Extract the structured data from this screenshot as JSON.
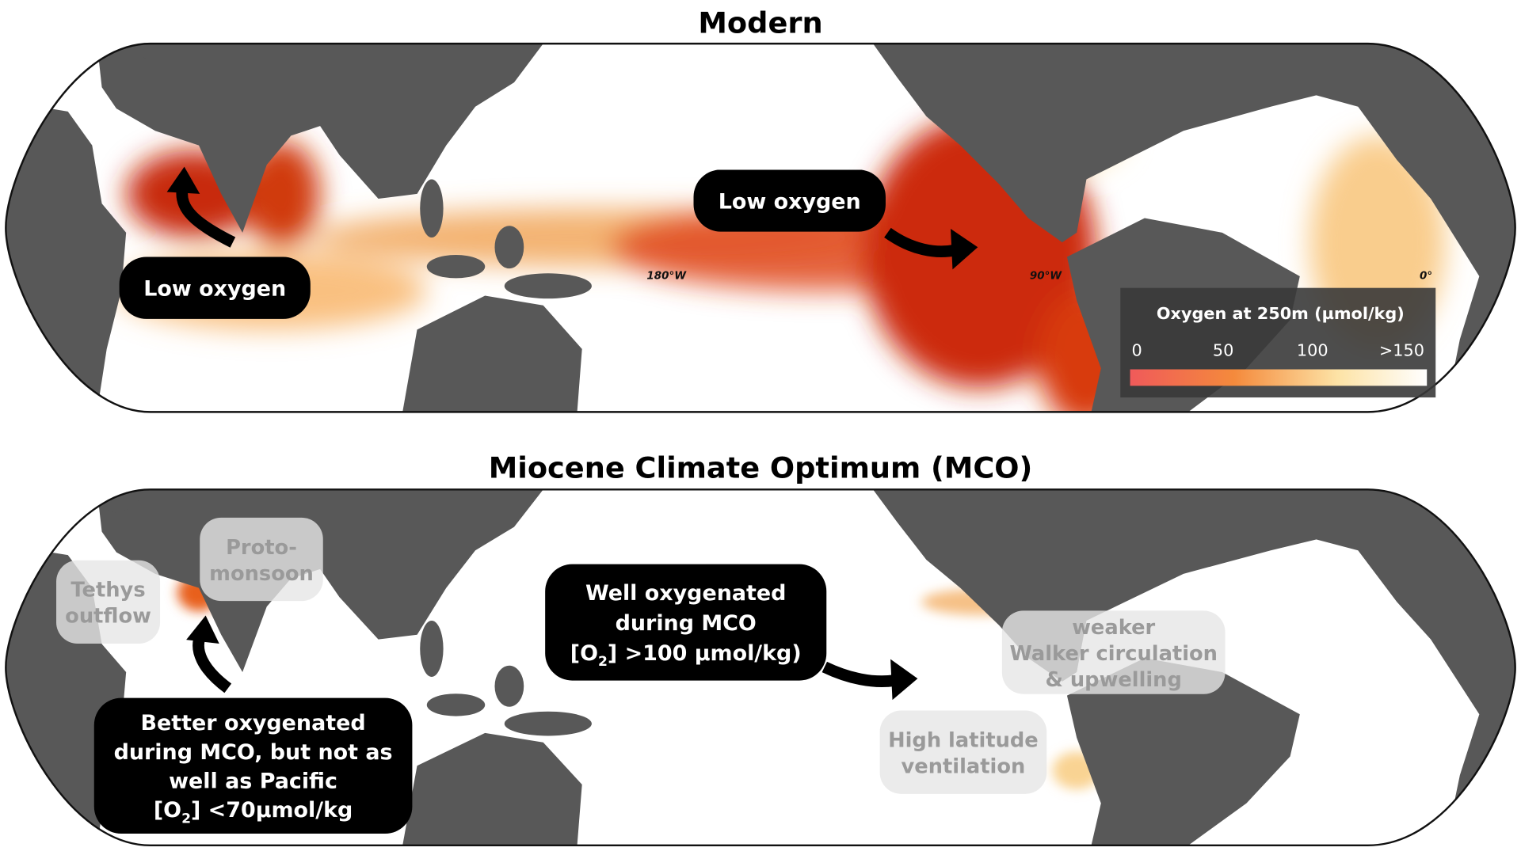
{
  "panels": [
    {
      "title": "Modern",
      "longitude_labels": [
        "180°W",
        "90°W",
        "0°"
      ],
      "callouts": [
        {
          "lines": [
            "Low oxygen"
          ]
        },
        {
          "lines": [
            "Low oxygen"
          ]
        }
      ],
      "legend": {
        "title": "Oxygen at 250m (µmol/kg)",
        "ticks": [
          "0",
          "50",
          "100",
          ">150"
        ]
      }
    },
    {
      "title": "Miocene Climate Optimum (MCO)",
      "callouts": [
        {
          "lines": [
            "Well oxygenated",
            "during MCO",
            {
              "pre": "[O",
              "sub": "2",
              "post": "] >100 µmol/kg)"
            }
          ]
        },
        {
          "lines": [
            "Better oxygenated",
            "during MCO, but not as",
            "well as Pacific",
            {
              "pre": "[O",
              "sub": "2",
              "post": "] <70µmol/kg"
            }
          ]
        }
      ],
      "notes": [
        {
          "lines": [
            "Tethys",
            "outflow"
          ]
        },
        {
          "lines": [
            "Proto-",
            "monsoon"
          ]
        },
        {
          "lines": [
            "weaker",
            "Walker circulation",
            "& upwelling"
          ]
        },
        {
          "lines": [
            "High latitude",
            "ventilation"
          ]
        }
      ]
    }
  ]
}
